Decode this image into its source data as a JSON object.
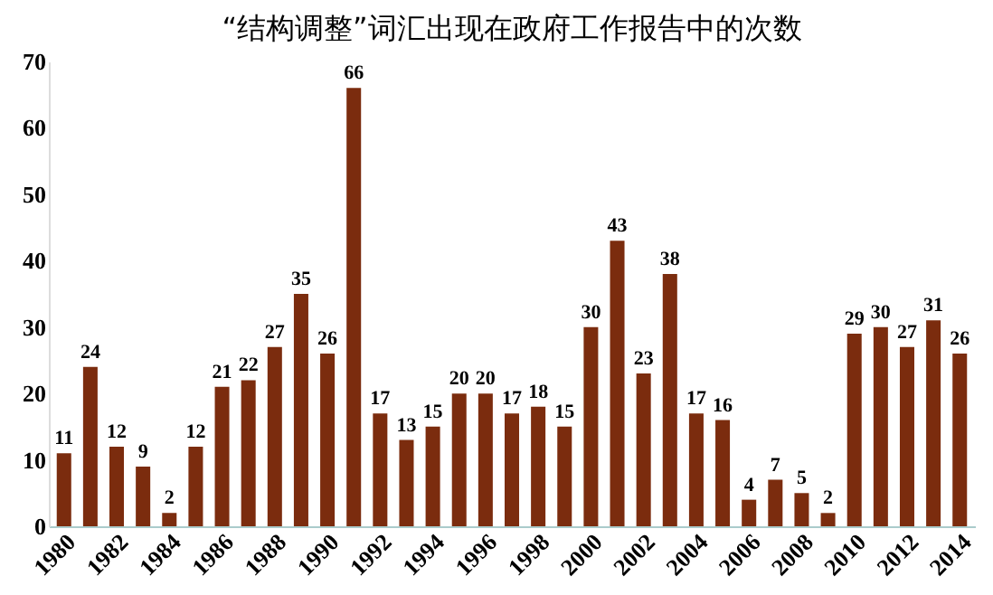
{
  "chart_data": {
    "type": "bar",
    "title": "“结构调整”词汇出现在政府工作报告中的次数",
    "categories": [
      "1980",
      null,
      "1982",
      null,
      "1984",
      null,
      "1986",
      null,
      "1988",
      null,
      "1990",
      null,
      "1992",
      null,
      "1994",
      null,
      "1996",
      null,
      "1998",
      null,
      "2000",
      null,
      "2002",
      null,
      "2004",
      null,
      "2006",
      null,
      "2008",
      null,
      "2010",
      null,
      "2012",
      null,
      "2014"
    ],
    "values": [
      11,
      24,
      12,
      9,
      2,
      12,
      21,
      22,
      27,
      35,
      26,
      66,
      17,
      13,
      15,
      20,
      20,
      17,
      18,
      15,
      30,
      43,
      23,
      38,
      17,
      16,
      4,
      7,
      5,
      2,
      29,
      30,
      27,
      31,
      26
    ],
    "color": "#7b2c0e",
    "ylim": [
      0,
      70
    ],
    "yticks": [
      0,
      10,
      20,
      30,
      40,
      50,
      60,
      70
    ],
    "data_labels": true,
    "grid": false
  }
}
